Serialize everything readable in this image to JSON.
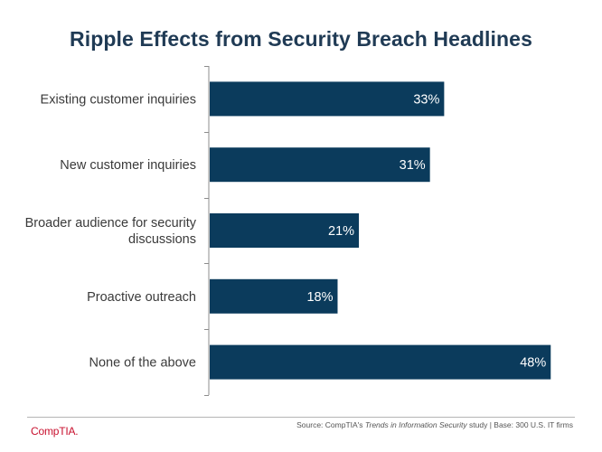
{
  "chart_data": {
    "type": "bar",
    "orientation": "horizontal",
    "title": "Ripple Effects from Security Breach Headlines",
    "categories": [
      [
        "Existing customer inquiries"
      ],
      [
        "New customer inquiries"
      ],
      [
        "Broader audience for security",
        "discussions"
      ],
      [
        "Proactive outreach"
      ],
      [
        "None of the above"
      ]
    ],
    "values": [
      33,
      31,
      21,
      18,
      48
    ],
    "value_labels": [
      "33%",
      "31%",
      "21%",
      "18%",
      "48%"
    ],
    "xlim": [
      0,
      50
    ],
    "grid": false,
    "legend": "none",
    "bar_color": "#0b3b5c"
  },
  "footer": {
    "logo": "CompTIA.",
    "source_prefix": "Source: CompTIA's ",
    "source_italic": "Trends in Information Security",
    "source_suffix": " study | Base: 300 U.S. IT firms"
  }
}
